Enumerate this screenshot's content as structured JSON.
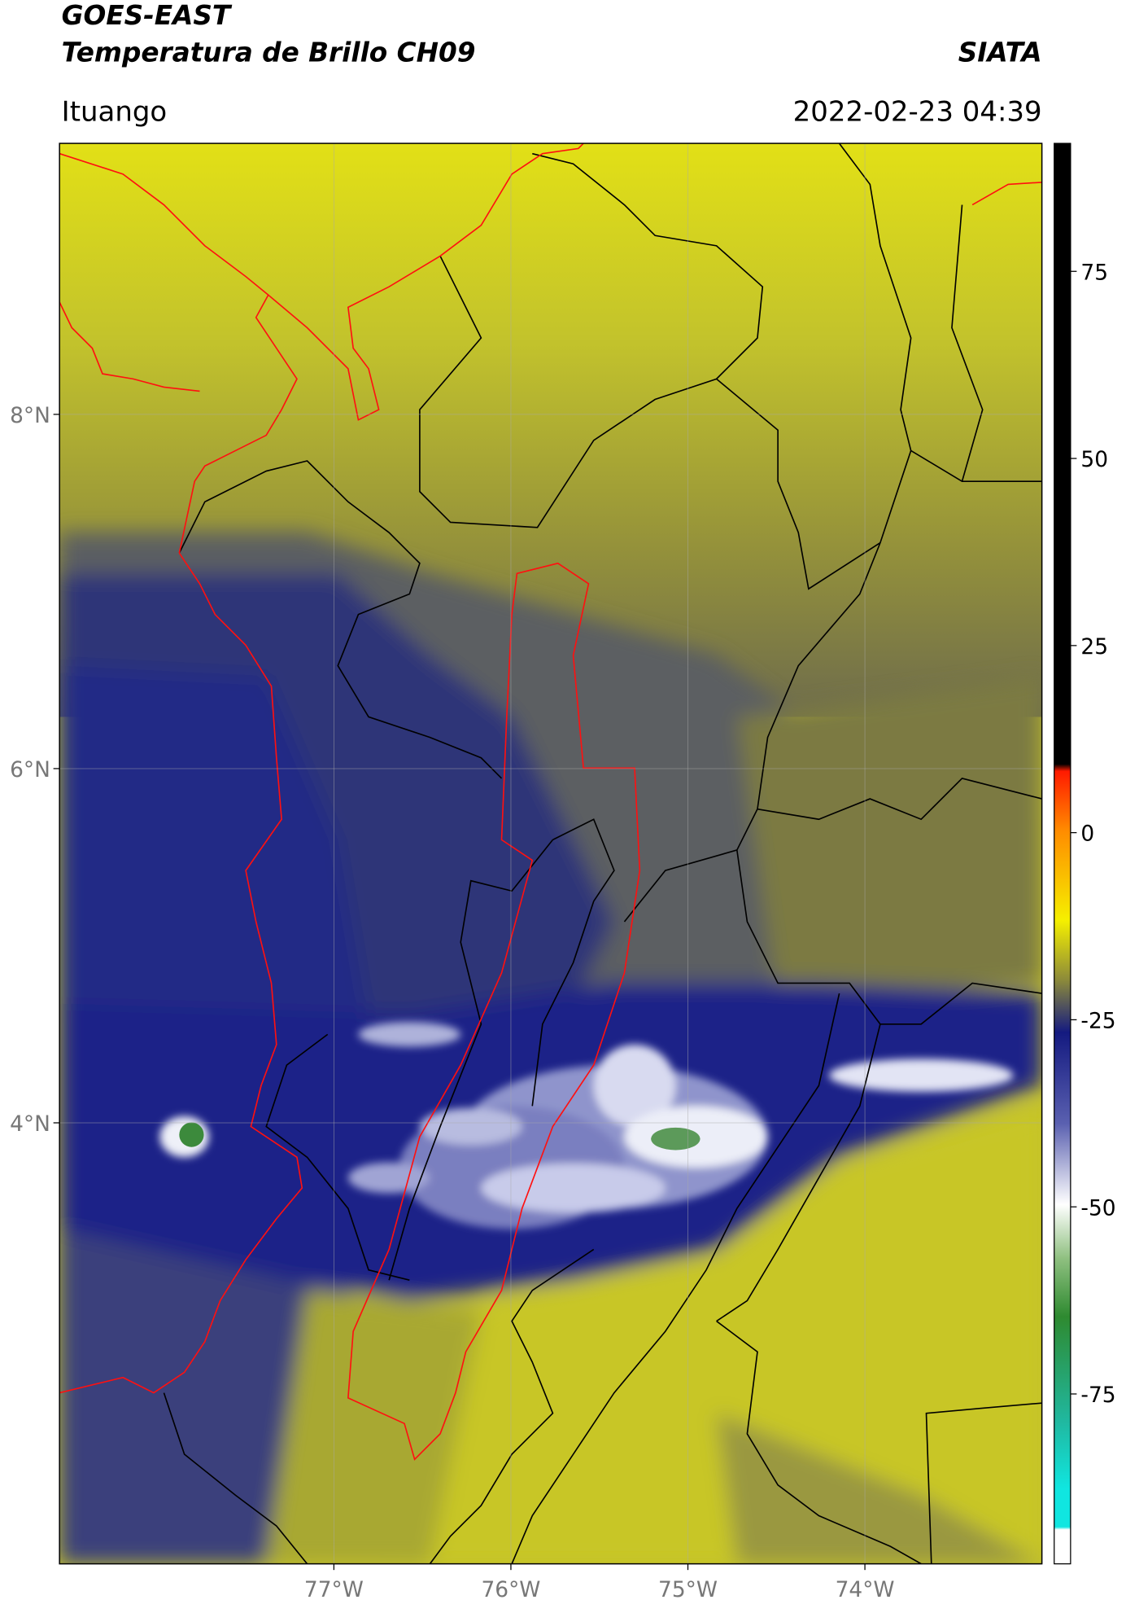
{
  "header": {
    "title_line1": "GOES-EAST",
    "title_line2": "Temperatura de Brillo CH09",
    "source": "SIATA",
    "location": "Ituango",
    "datetime": "2022-02-23 04:39"
  },
  "map": {
    "type": "map",
    "xlim": [
      -78.55,
      -73.0
    ],
    "ylim": [
      1.51,
      9.53
    ],
    "xticks": [
      {
        "value": -77,
        "label": "77°W"
      },
      {
        "value": -76,
        "label": "76°W"
      },
      {
        "value": -75,
        "label": "75°W"
      },
      {
        "value": -74,
        "label": "74°W"
      }
    ],
    "yticks": [
      {
        "value": 8,
        "label": "8°N"
      },
      {
        "value": 6,
        "label": "6°N"
      },
      {
        "value": 4,
        "label": "4°N"
      }
    ],
    "grid": true
  },
  "colorbar": {
    "lim": [
      -97.7,
      92.1
    ],
    "ticks": [
      75,
      50,
      25,
      0,
      -25,
      -50,
      -75
    ]
  }
}
